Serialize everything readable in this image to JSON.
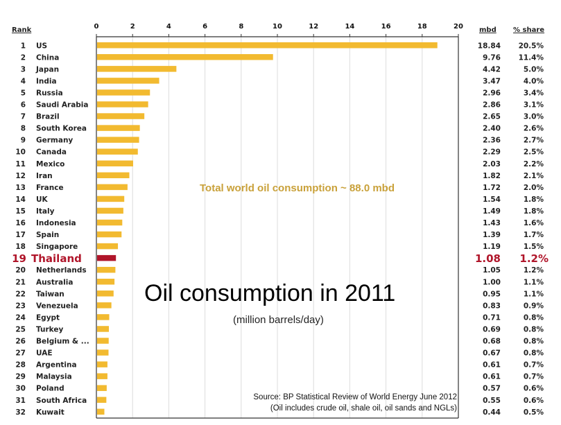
{
  "chart_data": {
    "type": "bar",
    "orientation": "horizontal",
    "title": "Oil consumption in 2011",
    "subtitle": "(million barrels/day)",
    "annotation": "Total world oil consumption  ~ 88.0 mbd",
    "source_line1": "Source:  BP Statistical Review of World Energy June 2012",
    "source_line2": "(Oil includes crude oil, shale oil, oil sands and NGLs)",
    "headers": {
      "rank": "Rank",
      "mbd": "mbd",
      "share": "% share"
    },
    "xlim": [
      0,
      20
    ],
    "xticks": [
      "0",
      "2",
      "4",
      "6",
      "8",
      "10",
      "12",
      "14",
      "16",
      "18",
      "20"
    ],
    "grid": true,
    "bar_color": "#f2ba30",
    "highlight_color": "#b0152a",
    "highlight_rank": 19,
    "rows": [
      {
        "rank": "1",
        "country": "US",
        "value": 18.84,
        "mbd": "18.84",
        "share": "20.5%"
      },
      {
        "rank": "2",
        "country": "China",
        "value": 9.76,
        "mbd": "9.76",
        "share": "11.4%"
      },
      {
        "rank": "3",
        "country": "Japan",
        "value": 4.42,
        "mbd": "4.42",
        "share": "5.0%"
      },
      {
        "rank": "4",
        "country": "India",
        "value": 3.47,
        "mbd": "3.47",
        "share": "4.0%"
      },
      {
        "rank": "5",
        "country": "Russia",
        "value": 2.96,
        "mbd": "2.96",
        "share": "3.4%"
      },
      {
        "rank": "6",
        "country": "Saudi Arabia",
        "value": 2.86,
        "mbd": "2.86",
        "share": "3.1%"
      },
      {
        "rank": "7",
        "country": "Brazil",
        "value": 2.65,
        "mbd": "2.65",
        "share": "3.0%"
      },
      {
        "rank": "8",
        "country": "South Korea",
        "value": 2.4,
        "mbd": "2.40",
        "share": "2.6%"
      },
      {
        "rank": "9",
        "country": "Germany",
        "value": 2.36,
        "mbd": "2.36",
        "share": "2.7%"
      },
      {
        "rank": "10",
        "country": "Canada",
        "value": 2.29,
        "mbd": "2.29",
        "share": "2.5%"
      },
      {
        "rank": "11",
        "country": "Mexico",
        "value": 2.03,
        "mbd": "2.03",
        "share": "2.2%"
      },
      {
        "rank": "12",
        "country": "Iran",
        "value": 1.82,
        "mbd": "1.82",
        "share": "2.1%"
      },
      {
        "rank": "13",
        "country": "France",
        "value": 1.72,
        "mbd": "1.72",
        "share": "2.0%"
      },
      {
        "rank": "14",
        "country": "UK",
        "value": 1.54,
        "mbd": "1.54",
        "share": "1.8%"
      },
      {
        "rank": "15",
        "country": "Italy",
        "value": 1.49,
        "mbd": "1.49",
        "share": "1.8%"
      },
      {
        "rank": "16",
        "country": "Indonesia",
        "value": 1.43,
        "mbd": "1.43",
        "share": "1.6%"
      },
      {
        "rank": "17",
        "country": "Spain",
        "value": 1.39,
        "mbd": "1.39",
        "share": "1.7%"
      },
      {
        "rank": "18",
        "country": "Singapore",
        "value": 1.19,
        "mbd": "1.19",
        "share": "1.5%"
      },
      {
        "rank": "19",
        "country": "Thailand",
        "value": 1.08,
        "mbd": "1.08",
        "share": "1.2%"
      },
      {
        "rank": "20",
        "country": "Netherlands",
        "value": 1.05,
        "mbd": "1.05",
        "share": "1.2%"
      },
      {
        "rank": "21",
        "country": "Australia",
        "value": 1.0,
        "mbd": "1.00",
        "share": "1.1%"
      },
      {
        "rank": "22",
        "country": "Taiwan",
        "value": 0.95,
        "mbd": "0.95",
        "share": "1.1%"
      },
      {
        "rank": "23",
        "country": "Venezuela",
        "value": 0.83,
        "mbd": "0.83",
        "share": "0.9%"
      },
      {
        "rank": "24",
        "country": "Egypt",
        "value": 0.71,
        "mbd": "0.71",
        "share": "0.8%"
      },
      {
        "rank": "25",
        "country": "Turkey",
        "value": 0.69,
        "mbd": "0.69",
        "share": "0.8%"
      },
      {
        "rank": "26",
        "country": "Belgium & ...",
        "value": 0.68,
        "mbd": "0.68",
        "share": "0.8%"
      },
      {
        "rank": "27",
        "country": "UAE",
        "value": 0.67,
        "mbd": "0.67",
        "share": "0.8%"
      },
      {
        "rank": "28",
        "country": "Argentina",
        "value": 0.61,
        "mbd": "0.61",
        "share": "0.7%"
      },
      {
        "rank": "29",
        "country": "Malaysia",
        "value": 0.61,
        "mbd": "0.61",
        "share": "0.7%"
      },
      {
        "rank": "30",
        "country": "Poland",
        "value": 0.57,
        "mbd": "0.57",
        "share": "0.6%"
      },
      {
        "rank": "31",
        "country": "South Africa",
        "value": 0.55,
        "mbd": "0.55",
        "share": "0.6%"
      },
      {
        "rank": "32",
        "country": "Kuwait",
        "value": 0.44,
        "mbd": "0.44",
        "share": "0.5%"
      }
    ]
  }
}
